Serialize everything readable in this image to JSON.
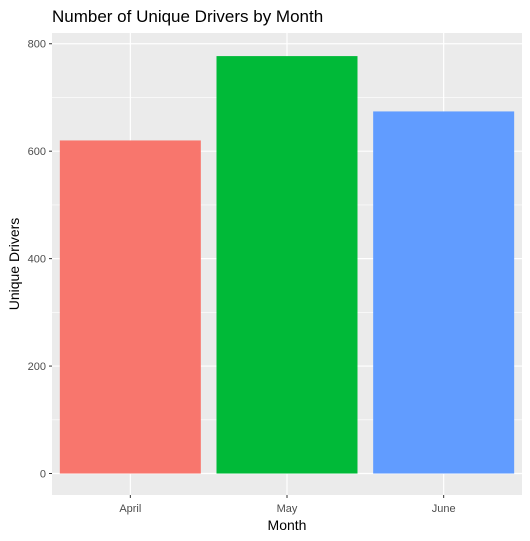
{
  "chart_data": {
    "type": "bar",
    "title": "Number of Unique Drivers by Month",
    "xlabel": "Month",
    "ylabel": "Unique Drivers",
    "categories": [
      "April",
      "May",
      "June"
    ],
    "values": [
      620,
      777,
      674
    ],
    "colors": [
      "#F8766D",
      "#00BA38",
      "#619CFF"
    ],
    "ylim": [
      -40,
      820
    ],
    "yticks": [
      0,
      200,
      400,
      600,
      800
    ],
    "ytick_labels": [
      "0",
      "200",
      "400",
      "600",
      "800"
    ],
    "grid": true,
    "panel_background": "#EBEBEB",
    "gridline_color": "#FFFFFF",
    "legend": "none"
  }
}
